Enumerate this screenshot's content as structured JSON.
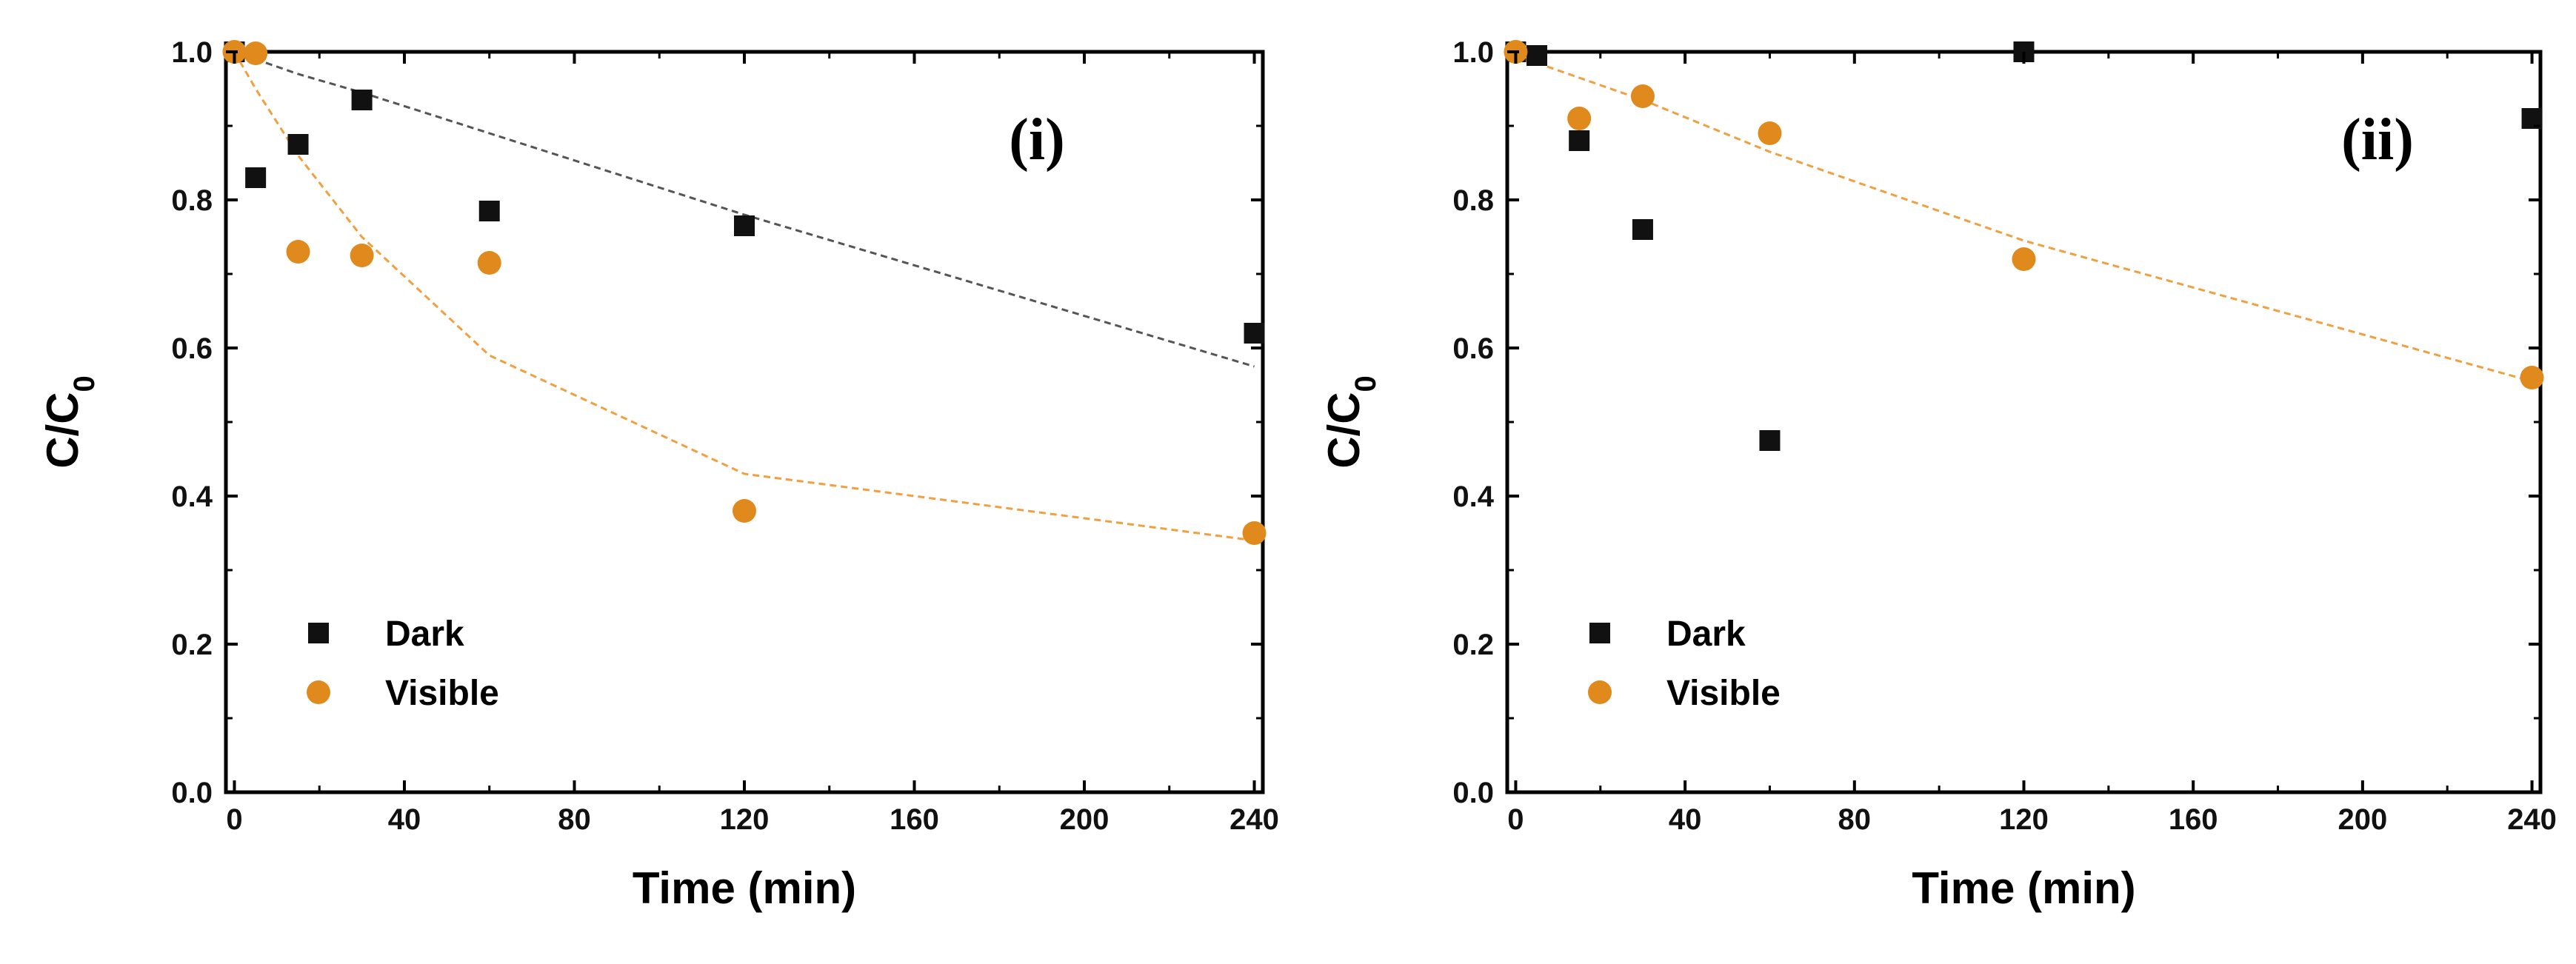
{
  "colors": {
    "dark": "#111111",
    "visible": "#e08a1e",
    "dark_fit": "#555555",
    "visible_fit": "#f0a040"
  },
  "chart_data": [
    {
      "type": "scatter",
      "panel": "(i)",
      "xlabel": "Time (min)",
      "ylabel": "C/C",
      "ylabel_sub": "0",
      "xlim": [
        -2,
        242
      ],
      "ylim": [
        0.0,
        1.0
      ],
      "xticks": [
        0,
        40,
        80,
        120,
        160,
        200,
        240
      ],
      "yticks": [
        0.0,
        0.2,
        0.4,
        0.6,
        0.8,
        1.0
      ],
      "xtick_labels": [
        "0",
        "40",
        "80",
        "120",
        "160",
        "200",
        "240"
      ],
      "ytick_labels": [
        "0.0",
        "0.2",
        "0.4",
        "0.6",
        "0.8",
        "1.0"
      ],
      "grid": false,
      "legend": "bottom-left",
      "series": [
        {
          "name": "Dark",
          "marker": "square",
          "x": [
            0,
            5,
            15,
            30,
            60,
            120,
            240
          ],
          "y": [
            1.0,
            0.83,
            0.875,
            0.935,
            0.785,
            0.765,
            0.62
          ]
        },
        {
          "name": "Visible",
          "marker": "circle",
          "x": [
            0,
            5,
            15,
            30,
            60,
            120,
            240
          ],
          "y": [
            1.0,
            0.998,
            0.73,
            0.725,
            0.715,
            0.38,
            0.35
          ]
        }
      ],
      "fits": [
        {
          "series": "Dark",
          "x": [
            0,
            5,
            15,
            30,
            60,
            120,
            240
          ],
          "y": [
            1.0,
            0.99,
            0.97,
            0.945,
            0.89,
            0.78,
            0.575
          ]
        },
        {
          "series": "Visible",
          "x": [
            0,
            5,
            15,
            30,
            60,
            120,
            240
          ],
          "y": [
            1.0,
            0.95,
            0.86,
            0.75,
            0.59,
            0.43,
            0.34
          ]
        }
      ]
    },
    {
      "type": "scatter",
      "panel": "(ii)",
      "xlabel": "Time (min)",
      "ylabel": "C/C",
      "ylabel_sub": "0",
      "xlim": [
        -2,
        242
      ],
      "ylim": [
        0.0,
        1.0
      ],
      "xticks": [
        0,
        40,
        80,
        120,
        160,
        200,
        240
      ],
      "yticks": [
        0.0,
        0.2,
        0.4,
        0.6,
        0.8,
        1.0
      ],
      "xtick_labels": [
        "0",
        "40",
        "80",
        "120",
        "160",
        "200",
        "240"
      ],
      "ytick_labels": [
        "0.0",
        "0.2",
        "0.4",
        "0.6",
        "0.8",
        "1.0"
      ],
      "grid": false,
      "legend": "bottom-left",
      "series": [
        {
          "name": "Dark",
          "marker": "square",
          "x": [
            0,
            5,
            15,
            30,
            60,
            120,
            240
          ],
          "y": [
            1.0,
            0.995,
            0.88,
            0.76,
            0.475,
            1.0,
            0.91
          ]
        },
        {
          "name": "Visible",
          "marker": "circle",
          "x": [
            0,
            15,
            30,
            60,
            120,
            240
          ],
          "y": [
            1.0,
            0.91,
            0.94,
            0.89,
            0.72,
            0.56
          ]
        }
      ],
      "fits": [
        {
          "series": "Visible",
          "x": [
            0,
            15,
            30,
            60,
            120,
            240
          ],
          "y": [
            0.995,
            0.965,
            0.935,
            0.865,
            0.745,
            0.555
          ]
        }
      ]
    }
  ]
}
